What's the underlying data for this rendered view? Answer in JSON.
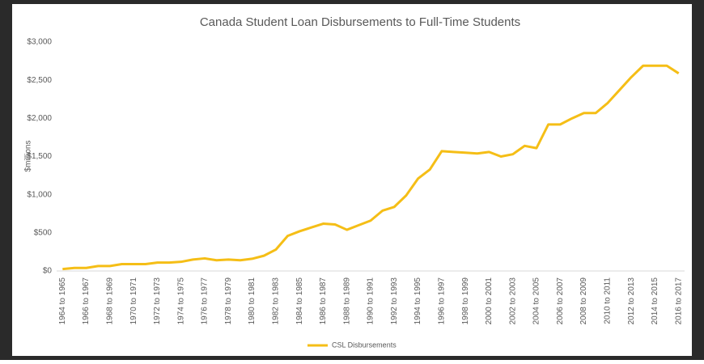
{
  "chart_data": {
    "type": "line",
    "title": "Canada Student Loan Disbursements to Full-Time Students",
    "y_label": "$millions",
    "categories": [
      "1964 to 1965",
      null,
      "1966 to 1967",
      null,
      "1968 to 1969",
      null,
      "1970 to 1971",
      null,
      "1972 to 1973",
      null,
      "1974 to 1975",
      null,
      "1976 to 1977",
      null,
      "1978 to 1979",
      null,
      "1980 to 1981",
      null,
      "1982 to 1983",
      null,
      "1984 to 1985",
      null,
      "1986 to 1987",
      null,
      "1988 to 1989",
      null,
      "1990 to 1991",
      null,
      "1992 to 1993",
      null,
      "1994 to 1995",
      null,
      "1996 to 1997",
      null,
      "1998 to 1999",
      null,
      "2000 to 2001",
      null,
      "2002 to 2003",
      null,
      "2004 to 2005",
      null,
      "2006 to 2007",
      null,
      "2008 to 2009",
      null,
      "2010 to 2011",
      null,
      "2012 to 2013",
      null,
      "2014 to 2015",
      null,
      "2016 to 2017"
    ],
    "series": [
      {
        "name": "CSL Disbursements",
        "color": "#f5be16",
        "values": [
          25,
          40,
          40,
          65,
          65,
          90,
          90,
          90,
          110,
          110,
          120,
          150,
          165,
          140,
          150,
          140,
          160,
          200,
          280,
          460,
          520,
          570,
          620,
          610,
          540,
          600,
          660,
          790,
          840,
          990,
          1210,
          1330,
          1570,
          1560,
          1550,
          1540,
          1560,
          1500,
          1530,
          1640,
          1610,
          1920,
          1920,
          2000,
          2070,
          2070,
          2200,
          2370,
          2540,
          2690,
          2690,
          2690,
          2590
        ]
      }
    ],
    "ylim": [
      0,
      3000
    ],
    "yticks": [
      {
        "value": 0,
        "label": "$0"
      },
      {
        "value": 500,
        "label": "$500"
      },
      {
        "value": 1000,
        "label": "$1,000"
      },
      {
        "value": 1500,
        "label": "$1,500"
      },
      {
        "value": 2000,
        "label": "$2,000"
      },
      {
        "value": 2500,
        "label": "$2,500"
      },
      {
        "value": 3000,
        "label": "$3,000"
      }
    ],
    "grid": false,
    "legend": "bottom"
  }
}
